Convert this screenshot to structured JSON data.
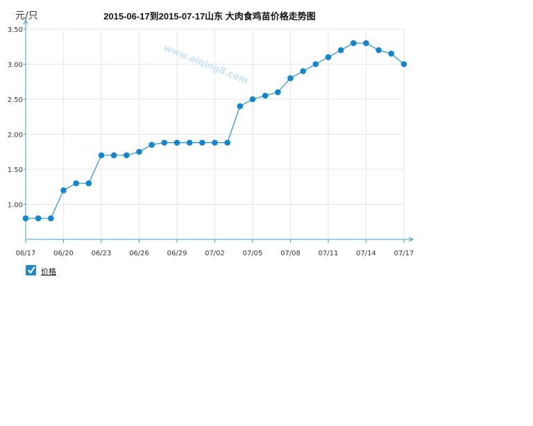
{
  "colors": {
    "series": "#1e8fd0",
    "marker": "#1287cf",
    "axis": "#3c9ccc",
    "grid": "#e6e6e6",
    "legend_box": "#1e88c8"
  },
  "watermark": "www.aiqing8.com",
  "chart_data": {
    "type": "line",
    "title": "2015-06-17到2015-07-17山东  大肉食鸡苗价格走势图",
    "ylabel": "元/只",
    "xlabel": "",
    "ylim": [
      0.5,
      3.5
    ],
    "yticks": [
      1.0,
      1.5,
      2.0,
      2.5,
      3.0,
      3.5
    ],
    "ytick_labels": [
      "1.00",
      "1.50",
      "2.00",
      "2.50",
      "3.00",
      "3.50"
    ],
    "x": [
      "06/17",
      "06/18",
      "06/19",
      "06/20",
      "06/21",
      "06/22",
      "06/23",
      "06/24",
      "06/25",
      "06/26",
      "06/27",
      "06/28",
      "06/29",
      "06/30",
      "07/01",
      "07/02",
      "07/03",
      "07/04",
      "07/05",
      "07/06",
      "07/07",
      "07/08",
      "07/09",
      "07/10",
      "07/11",
      "07/12",
      "07/13",
      "07/14",
      "07/15",
      "07/16",
      "07/17"
    ],
    "xtick_labels": [
      "06/17",
      "06/20",
      "06/23",
      "06/26",
      "06/29",
      "07/02",
      "07/05",
      "07/08",
      "07/11",
      "07/14",
      "07/17"
    ],
    "grid": true,
    "legend_position": "bottom-left",
    "series": [
      {
        "name": "价格",
        "values": [
          0.8,
          0.8,
          0.8,
          1.2,
          1.3,
          1.3,
          1.7,
          1.7,
          1.7,
          1.75,
          1.85,
          1.88,
          1.88,
          1.88,
          1.88,
          1.88,
          1.88,
          2.4,
          2.5,
          2.55,
          2.6,
          2.8,
          2.9,
          3.0,
          3.1,
          3.2,
          3.3,
          3.3,
          3.2,
          3.15,
          3.0
        ]
      }
    ]
  }
}
